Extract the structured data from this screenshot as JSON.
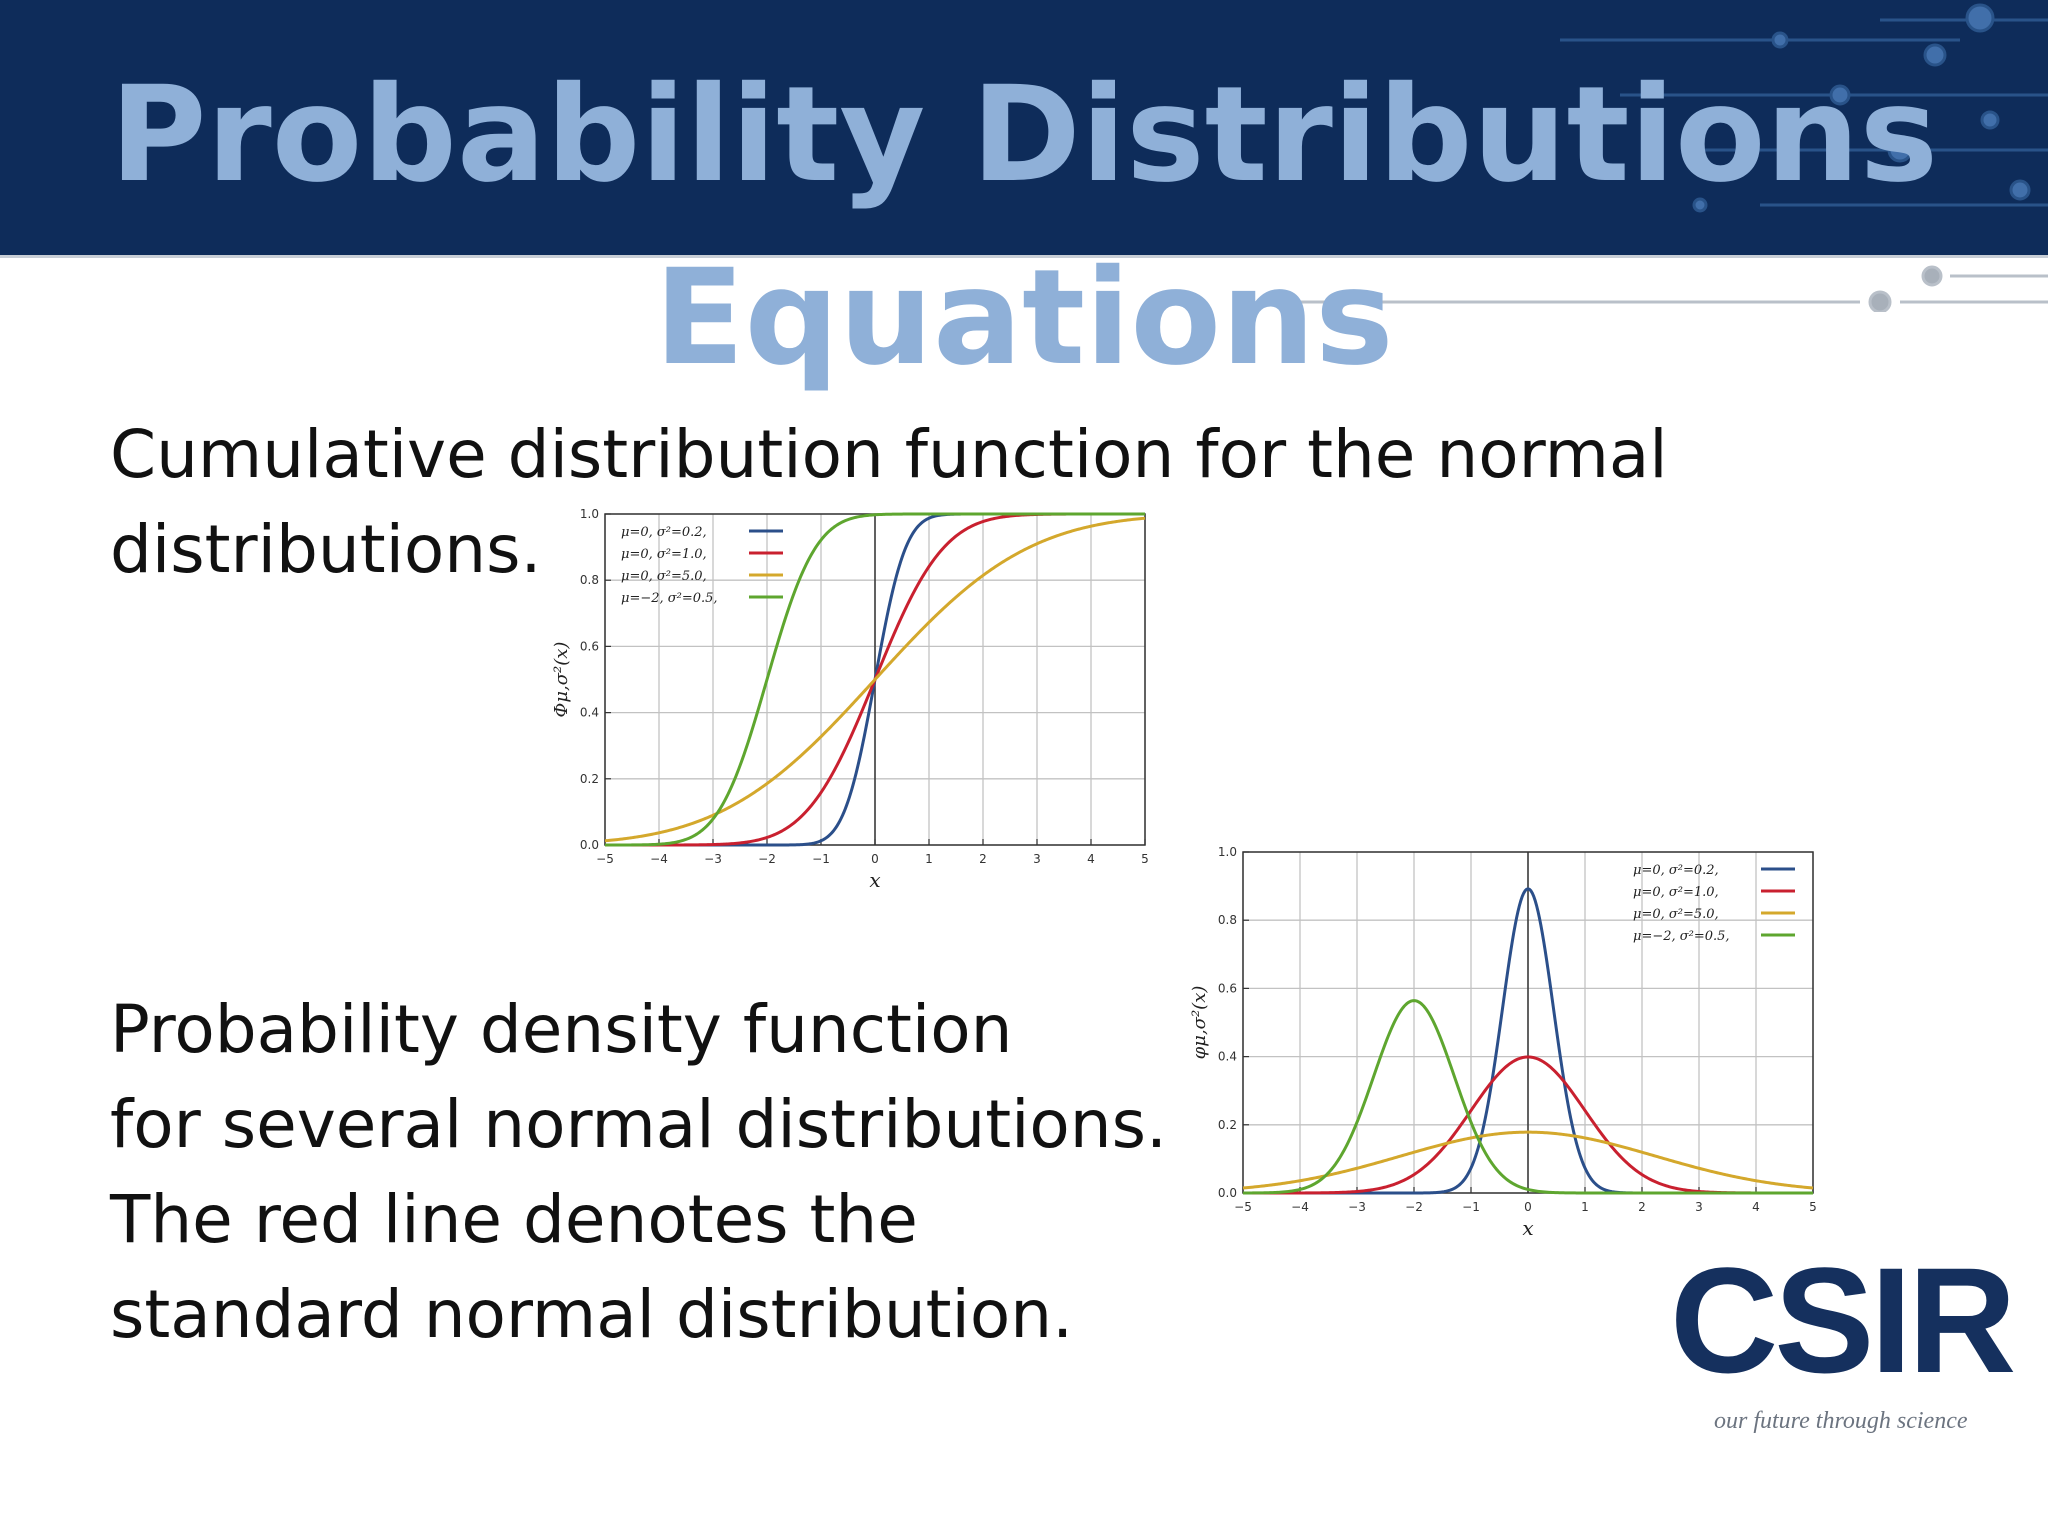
{
  "slide": {
    "title_line1": "Probability Distributions",
    "title_line2": "Equations",
    "cdf_text": [
      "Cumulative distribution function for the normal",
      "distributions."
    ],
    "pdf_text": [
      "Probability density function",
      "for several normal distributions.",
      "The red line denotes the",
      "standard normal distribution."
    ]
  },
  "logo": {
    "word": "CSIR",
    "tagline": "our future through science"
  },
  "colors": {
    "header": "#0e2c5a",
    "title": "#8fb0d8",
    "blue": "#2b4f8a",
    "red": "#c9202f",
    "yellow": "#d4a82c",
    "green": "#5ea62f"
  },
  "chart_data": [
    {
      "type": "line",
      "function": "cdf",
      "ylabel": "Φμ,σ²(x)",
      "xlabel": "x",
      "xlim": [
        -5,
        5
      ],
      "ylim": [
        0,
        1
      ],
      "x_ticks": [
        "−5",
        "−4",
        "−3",
        "−2",
        "−1",
        "0",
        "1",
        "2",
        "3",
        "4",
        "5"
      ],
      "y_ticks": [
        "0.0",
        "0.2",
        "0.4",
        "0.6",
        "0.8",
        "1.0"
      ],
      "grid": true,
      "legend_position": "top-left",
      "series": [
        {
          "name": "μ=0,  σ²=0.2,",
          "mu": 0,
          "var": 0.2,
          "color": "#2b4f8a"
        },
        {
          "name": "μ=0,  σ²=1.0,",
          "mu": 0,
          "var": 1.0,
          "color": "#c9202f"
        },
        {
          "name": "μ=0,  σ²=5.0,",
          "mu": 0,
          "var": 5.0,
          "color": "#d4a82c"
        },
        {
          "name": "μ=−2, σ²=0.5,",
          "mu": -2,
          "var": 0.5,
          "color": "#5ea62f"
        }
      ]
    },
    {
      "type": "line",
      "function": "pdf",
      "ylabel": "φμ,σ²(x)",
      "xlabel": "x",
      "xlim": [
        -5,
        5
      ],
      "ylim": [
        0,
        1
      ],
      "x_ticks": [
        "−5",
        "−4",
        "−3",
        "−2",
        "−1",
        "0",
        "1",
        "2",
        "3",
        "4",
        "5"
      ],
      "y_ticks": [
        "0.0",
        "0.2",
        "0.4",
        "0.6",
        "0.8",
        "1.0"
      ],
      "grid": true,
      "legend_position": "top-right",
      "series": [
        {
          "name": "μ=0,  σ²=0.2,",
          "mu": 0,
          "var": 0.2,
          "color": "#2b4f8a"
        },
        {
          "name": "μ=0,  σ²=1.0,",
          "mu": 0,
          "var": 1.0,
          "color": "#c9202f"
        },
        {
          "name": "μ=0,  σ²=5.0,",
          "mu": 0,
          "var": 5.0,
          "color": "#d4a82c"
        },
        {
          "name": "μ=−2, σ²=0.5,",
          "mu": -2,
          "var": 0.5,
          "color": "#5ea62f"
        }
      ]
    }
  ]
}
